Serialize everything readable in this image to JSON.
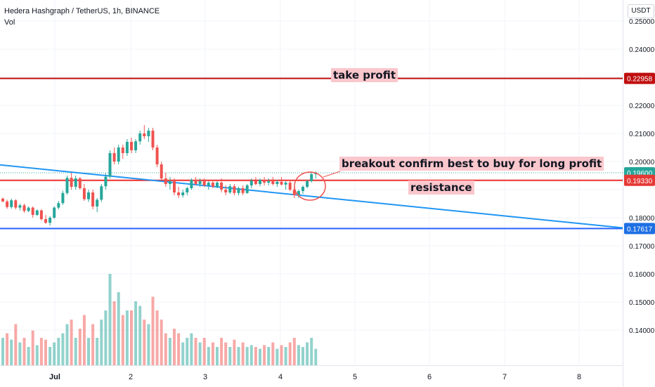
{
  "symbol": {
    "title": "Hedera Hashgraph / TetherUS, 1h, BINANCE",
    "indicator": "Vol",
    "currency": "USDT"
  },
  "chart_data": {
    "type": "candlestick",
    "price_axis": {
      "ticks": [
        "0.25000",
        "0.24000",
        "0.22000",
        "0.21000",
        "0.20000",
        "0.18000",
        "0.17000",
        "0.16000",
        "0.15000",
        "0.14000"
      ],
      "ylim": [
        0.131,
        0.2505
      ]
    },
    "time_axis": {
      "ticks": [
        "Jul",
        "2",
        "3",
        "4",
        "5",
        "6",
        "7",
        "8"
      ]
    },
    "price_labels": [
      {
        "value": "0.22958",
        "color": "#c00f0f"
      },
      {
        "value": "0.19600",
        "color": "#26a69a"
      },
      {
        "value": "0.19330",
        "color": "#e53935"
      },
      {
        "value": "0.17617",
        "color": "#1e6fe3"
      }
    ],
    "levels": [
      {
        "price": 0.22958,
        "color": "#c00f0f"
      },
      {
        "price": 0.1933,
        "color": "#ef2f2f"
      },
      {
        "price": 0.17617,
        "color": "#2962ff"
      }
    ],
    "current_price": 0.196,
    "trendline": {
      "start": [
        0,
        0.1988
      ],
      "end": [
        101,
        0.1764
      ],
      "color": "#2196f3"
    },
    "annotations": {
      "take_profit": "take profit",
      "breakout": "breakout confirm best to buy for long profit",
      "resistance": "resistance"
    },
    "candles": [
      [
        0.1868,
        0.1872,
        0.1855,
        0.1858
      ],
      [
        0.1858,
        0.1864,
        0.1832,
        0.1838
      ],
      [
        0.1838,
        0.1868,
        0.1832,
        0.1862
      ],
      [
        0.1862,
        0.1866,
        0.183,
        0.1836
      ],
      [
        0.1836,
        0.185,
        0.1826,
        0.1844
      ],
      [
        0.1844,
        0.185,
        0.1818,
        0.1824
      ],
      [
        0.1824,
        0.184,
        0.182,
        0.1836
      ],
      [
        0.1836,
        0.184,
        0.18,
        0.181
      ],
      [
        0.181,
        0.183,
        0.1806,
        0.1826
      ],
      [
        0.1826,
        0.183,
        0.179,
        0.1795
      ],
      [
        0.1795,
        0.181,
        0.1778,
        0.1782
      ],
      [
        0.1782,
        0.1806,
        0.1772,
        0.18
      ],
      [
        0.18,
        0.184,
        0.1796,
        0.1836
      ],
      [
        0.1836,
        0.186,
        0.183,
        0.1852
      ],
      [
        0.1852,
        0.1896,
        0.1846,
        0.1888
      ],
      [
        0.1888,
        0.195,
        0.1882,
        0.1942
      ],
      [
        0.1942,
        0.196,
        0.19,
        0.191
      ],
      [
        0.191,
        0.195,
        0.19,
        0.194
      ],
      [
        0.194,
        0.1945,
        0.19,
        0.1905
      ],
      [
        0.1905,
        0.192,
        0.186,
        0.1866
      ],
      [
        0.1866,
        0.19,
        0.1856,
        0.189
      ],
      [
        0.189,
        0.19,
        0.183,
        0.184
      ],
      [
        0.184,
        0.187,
        0.182,
        0.1864
      ],
      [
        0.1864,
        0.192,
        0.1856,
        0.1912
      ],
      [
        0.1912,
        0.196,
        0.19,
        0.1946
      ],
      [
        0.1946,
        0.204,
        0.194,
        0.203
      ],
      [
        0.203,
        0.205,
        0.199,
        0.2
      ],
      [
        0.2,
        0.206,
        0.199,
        0.205
      ],
      [
        0.205,
        0.206,
        0.201,
        0.203
      ],
      [
        0.203,
        0.208,
        0.202,
        0.207
      ],
      [
        0.207,
        0.2085,
        0.203,
        0.204
      ],
      [
        0.204,
        0.208,
        0.203,
        0.2072
      ],
      [
        0.2072,
        0.211,
        0.206,
        0.21
      ],
      [
        0.21,
        0.213,
        0.208,
        0.209
      ],
      [
        0.209,
        0.212,
        0.207,
        0.211
      ],
      [
        0.211,
        0.212,
        0.204,
        0.205
      ],
      [
        0.205,
        0.206,
        0.198,
        0.199
      ],
      [
        0.199,
        0.2,
        0.193,
        0.194
      ],
      [
        0.194,
        0.196,
        0.191,
        0.192
      ],
      [
        0.192,
        0.1945,
        0.19,
        0.193
      ],
      [
        0.193,
        0.194,
        0.188,
        0.189
      ],
      [
        0.189,
        0.191,
        0.187,
        0.188
      ],
      [
        0.188,
        0.19,
        0.1872,
        0.189
      ],
      [
        0.189,
        0.191,
        0.188,
        0.1905
      ],
      [
        0.1905,
        0.194,
        0.19,
        0.1935
      ],
      [
        0.1935,
        0.1945,
        0.1915,
        0.192
      ],
      [
        0.192,
        0.194,
        0.191,
        0.193
      ],
      [
        0.193,
        0.194,
        0.191,
        0.1915
      ],
      [
        0.1915,
        0.193,
        0.19,
        0.1925
      ],
      [
        0.1925,
        0.1935,
        0.1905,
        0.191
      ],
      [
        0.191,
        0.193,
        0.1905,
        0.1925
      ],
      [
        0.1925,
        0.194,
        0.189,
        0.19
      ],
      [
        0.19,
        0.1915,
        0.188,
        0.189
      ],
      [
        0.189,
        0.192,
        0.1885,
        0.1912
      ],
      [
        0.1912,
        0.192,
        0.188,
        0.1888
      ],
      [
        0.1888,
        0.191,
        0.188,
        0.1905
      ],
      [
        0.1905,
        0.1915,
        0.188,
        0.1888
      ],
      [
        0.1888,
        0.192,
        0.1885,
        0.1915
      ],
      [
        0.1915,
        0.194,
        0.1905,
        0.1932
      ],
      [
        0.1932,
        0.1945,
        0.1915,
        0.192
      ],
      [
        0.192,
        0.194,
        0.1912,
        0.1935
      ],
      [
        0.1935,
        0.1945,
        0.1915,
        0.1925
      ],
      [
        0.1925,
        0.194,
        0.1915,
        0.193
      ],
      [
        0.193,
        0.1945,
        0.1915,
        0.192
      ],
      [
        0.192,
        0.1935,
        0.191,
        0.1928
      ],
      [
        0.1928,
        0.1945,
        0.1915,
        0.1918
      ],
      [
        0.1918,
        0.193,
        0.19,
        0.1925
      ],
      [
        0.1925,
        0.1935,
        0.1895,
        0.19
      ],
      [
        0.19,
        0.191,
        0.187,
        0.188
      ],
      [
        0.188,
        0.19,
        0.187,
        0.1895
      ],
      [
        0.1895,
        0.1915,
        0.1885,
        0.191
      ],
      [
        0.191,
        0.1935,
        0.1905,
        0.193
      ],
      [
        0.193,
        0.1965,
        0.1925,
        0.1955
      ],
      [
        0.1955,
        0.1965,
        0.194,
        0.196
      ]
    ],
    "volumes": [
      [
        0.3,
        1
      ],
      [
        0.35,
        0
      ],
      [
        0.28,
        1
      ],
      [
        0.45,
        0
      ],
      [
        0.25,
        1
      ],
      [
        0.3,
        0
      ],
      [
        0.2,
        1
      ],
      [
        0.38,
        0
      ],
      [
        0.22,
        1
      ],
      [
        0.3,
        0
      ],
      [
        0.28,
        0
      ],
      [
        0.2,
        1
      ],
      [
        0.25,
        1
      ],
      [
        0.3,
        1
      ],
      [
        0.35,
        1
      ],
      [
        0.45,
        1
      ],
      [
        0.5,
        0
      ],
      [
        0.3,
        1
      ],
      [
        0.4,
        0
      ],
      [
        0.55,
        0
      ],
      [
        0.3,
        1
      ],
      [
        0.45,
        0
      ],
      [
        0.3,
        1
      ],
      [
        0.5,
        1
      ],
      [
        0.6,
        1
      ],
      [
        1.0,
        1
      ],
      [
        0.7,
        0
      ],
      [
        0.8,
        1
      ],
      [
        0.55,
        0
      ],
      [
        0.6,
        1
      ],
      [
        0.6,
        0
      ],
      [
        0.7,
        1
      ],
      [
        0.65,
        1
      ],
      [
        0.5,
        0
      ],
      [
        0.45,
        1
      ],
      [
        0.75,
        0
      ],
      [
        0.6,
        0
      ],
      [
        0.5,
        0
      ],
      [
        0.35,
        0
      ],
      [
        0.3,
        1
      ],
      [
        0.4,
        0
      ],
      [
        0.35,
        0
      ],
      [
        0.25,
        1
      ],
      [
        0.3,
        1
      ],
      [
        0.35,
        1
      ],
      [
        0.3,
        0
      ],
      [
        0.25,
        1
      ],
      [
        0.3,
        0
      ],
      [
        0.2,
        1
      ],
      [
        0.25,
        0
      ],
      [
        0.2,
        1
      ],
      [
        0.3,
        0
      ],
      [
        0.25,
        0
      ],
      [
        0.2,
        1
      ],
      [
        0.28,
        0
      ],
      [
        0.2,
        1
      ],
      [
        0.25,
        0
      ],
      [
        0.2,
        1
      ],
      [
        0.22,
        1
      ],
      [
        0.2,
        0
      ],
      [
        0.18,
        1
      ],
      [
        0.22,
        0
      ],
      [
        0.2,
        1
      ],
      [
        0.25,
        0
      ],
      [
        0.18,
        1
      ],
      [
        0.22,
        0
      ],
      [
        0.2,
        1
      ],
      [
        0.25,
        0
      ],
      [
        0.3,
        0
      ],
      [
        0.22,
        1
      ],
      [
        0.2,
        1
      ],
      [
        0.25,
        1
      ],
      [
        0.3,
        1
      ],
      [
        0.18,
        1
      ]
    ]
  }
}
